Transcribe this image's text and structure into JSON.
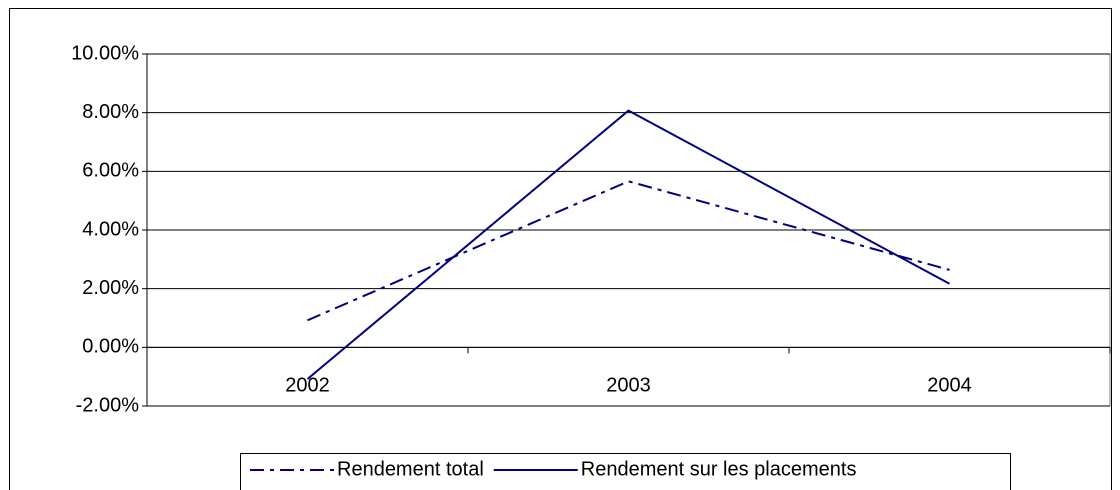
{
  "chart_data": {
    "type": "line",
    "categories": [
      "2002",
      "2003",
      "2004"
    ],
    "series": [
      {
        "name": "Rendement total",
        "color": "#000080",
        "line_style": "dash-dot",
        "values": [
          0.92,
          5.66,
          2.64
        ]
      },
      {
        "name": "Rendement sur les placements",
        "color": "#000080",
        "line_style": "solid",
        "values": [
          -1.08,
          8.07,
          2.17
        ]
      }
    ],
    "ylim": [
      -2,
      10
    ],
    "yticks": [
      {
        "value": -2,
        "label": "-2.00%"
      },
      {
        "value": 0,
        "label": "0.00%"
      },
      {
        "value": 2,
        "label": "2.00%"
      },
      {
        "value": 4,
        "label": "4.00%"
      },
      {
        "value": 6,
        "label": "6.00%"
      },
      {
        "value": 8,
        "label": "8.00%"
      },
      {
        "value": 10,
        "label": "10.00%"
      }
    ],
    "grid": true,
    "legend": "bottom"
  }
}
